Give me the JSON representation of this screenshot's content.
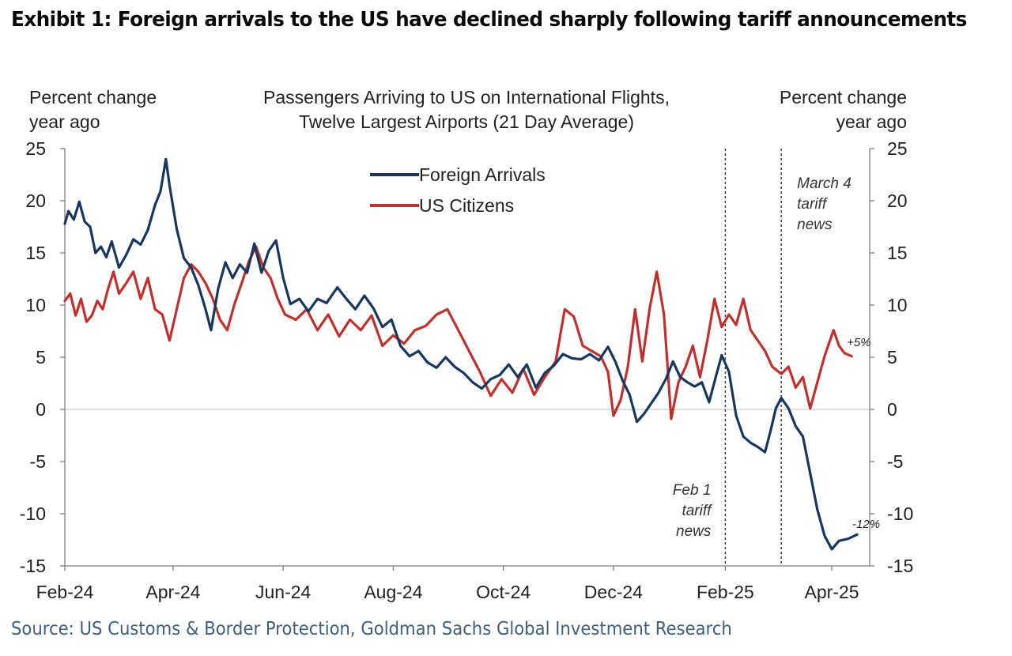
{
  "header": {
    "exhibit_title": "Exhibit 1: Foreign arrivals to the US have declined sharply following tariff announcements",
    "left_unit": [
      "Percent change",
      "year ago"
    ],
    "right_unit": [
      "Percent change",
      "year ago"
    ],
    "chart_title": [
      "Passengers Arriving to US on International Flights,",
      "Twelve Largest Airports (21 Day Average)"
    ]
  },
  "footer": {
    "source": "Source: US Customs & Border Protection, Goldman Sachs Global Investment Research"
  },
  "colors": {
    "foreign": "#17375e",
    "us": "#c0312e",
    "axis": "#7f7f7f",
    "zero_line": "#bfbfbf",
    "event_line": "#333333"
  },
  "chart_data": {
    "type": "line",
    "title": "Passengers Arriving to US on International Flights, Twelve Largest Airports (21 Day Average)",
    "ylabel_left": "Percent change year ago",
    "ylabel_right": "Percent change year ago",
    "xlim": [
      "2024-02-01",
      "2025-04-22"
    ],
    "ylim": [
      -15,
      25
    ],
    "y_ticks": [
      25,
      20,
      15,
      10,
      5,
      0,
      -5,
      -10,
      -15
    ],
    "x_ticks": [
      {
        "date": "2024-02-01",
        "label": "Feb-24"
      },
      {
        "date": "2024-04-01",
        "label": "Apr-24"
      },
      {
        "date": "2024-06-01",
        "label": "Jun-24"
      },
      {
        "date": "2024-08-01",
        "label": "Aug-24"
      },
      {
        "date": "2024-10-01",
        "label": "Oct-24"
      },
      {
        "date": "2024-12-01",
        "label": "Dec-24"
      },
      {
        "date": "2025-02-01",
        "label": "Feb-25"
      },
      {
        "date": "2025-04-01",
        "label": "Apr-25"
      }
    ],
    "grid": false,
    "legend_position": "top-center",
    "events": [
      {
        "date": "2025-02-01",
        "label": [
          "Feb 1",
          "tariff",
          "news"
        ]
      },
      {
        "date": "2025-03-04",
        "label": [
          "March 4",
          "tariff",
          "news"
        ]
      }
    ],
    "end_labels": [
      {
        "series": "US Citizens",
        "text": "+5%"
      },
      {
        "series": "Foreign Arrivals",
        "text": "-12%"
      }
    ],
    "series": [
      {
        "name": "Foreign Arrivals",
        "points": [
          [
            "2024-02-01",
            17.8
          ],
          [
            "2024-02-03",
            19.0
          ],
          [
            "2024-02-06",
            18.2
          ],
          [
            "2024-02-09",
            19.9
          ],
          [
            "2024-02-12",
            18.0
          ],
          [
            "2024-02-15",
            17.5
          ],
          [
            "2024-02-18",
            15.0
          ],
          [
            "2024-02-21",
            15.6
          ],
          [
            "2024-02-24",
            14.6
          ],
          [
            "2024-02-27",
            16.1
          ],
          [
            "2024-03-02",
            13.6
          ],
          [
            "2024-03-06",
            14.8
          ],
          [
            "2024-03-10",
            16.3
          ],
          [
            "2024-03-14",
            15.8
          ],
          [
            "2024-03-18",
            17.2
          ],
          [
            "2024-03-22",
            19.6
          ],
          [
            "2024-03-25",
            20.9
          ],
          [
            "2024-03-28",
            24.0
          ],
          [
            "2024-03-30",
            21.5
          ],
          [
            "2024-04-03",
            17.3
          ],
          [
            "2024-04-07",
            14.5
          ],
          [
            "2024-04-11",
            13.6
          ],
          [
            "2024-04-15",
            11.9
          ],
          [
            "2024-04-19",
            9.6
          ],
          [
            "2024-04-22",
            7.6
          ],
          [
            "2024-04-26",
            11.6
          ],
          [
            "2024-04-30",
            14.1
          ],
          [
            "2024-05-04",
            12.6
          ],
          [
            "2024-05-08",
            13.9
          ],
          [
            "2024-05-12",
            13.1
          ],
          [
            "2024-05-16",
            15.9
          ],
          [
            "2024-05-20",
            13.1
          ],
          [
            "2024-05-24",
            15.2
          ],
          [
            "2024-05-28",
            16.2
          ],
          [
            "2024-06-01",
            12.6
          ],
          [
            "2024-06-05",
            10.1
          ],
          [
            "2024-06-10",
            10.6
          ],
          [
            "2024-06-15",
            9.4
          ],
          [
            "2024-06-20",
            10.6
          ],
          [
            "2024-06-25",
            10.2
          ],
          [
            "2024-07-01",
            11.7
          ],
          [
            "2024-07-06",
            10.6
          ],
          [
            "2024-07-11",
            9.6
          ],
          [
            "2024-07-16",
            10.9
          ],
          [
            "2024-07-21",
            9.7
          ],
          [
            "2024-07-26",
            7.9
          ],
          [
            "2024-07-31",
            8.6
          ],
          [
            "2024-08-05",
            6.1
          ],
          [
            "2024-08-10",
            5.1
          ],
          [
            "2024-08-15",
            5.6
          ],
          [
            "2024-08-20",
            4.5
          ],
          [
            "2024-08-25",
            4.0
          ],
          [
            "2024-08-30",
            5.0
          ],
          [
            "2024-09-04",
            4.1
          ],
          [
            "2024-09-09",
            3.5
          ],
          [
            "2024-09-14",
            2.6
          ],
          [
            "2024-09-19",
            2.0
          ],
          [
            "2024-09-24",
            2.9
          ],
          [
            "2024-09-29",
            3.3
          ],
          [
            "2024-10-04",
            4.3
          ],
          [
            "2024-10-09",
            3.1
          ],
          [
            "2024-10-14",
            4.3
          ],
          [
            "2024-10-19",
            2.1
          ],
          [
            "2024-10-24",
            3.5
          ],
          [
            "2024-10-29",
            4.2
          ],
          [
            "2024-11-03",
            5.3
          ],
          [
            "2024-11-08",
            4.9
          ],
          [
            "2024-11-13",
            4.8
          ],
          [
            "2024-11-18",
            5.3
          ],
          [
            "2024-11-23",
            4.7
          ],
          [
            "2024-11-28",
            6.0
          ],
          [
            "2024-12-02",
            4.6
          ],
          [
            "2024-12-06",
            2.8
          ],
          [
            "2024-12-10",
            1.4
          ],
          [
            "2024-12-14",
            -1.2
          ],
          [
            "2024-12-18",
            -0.4
          ],
          [
            "2024-12-22",
            0.6
          ],
          [
            "2024-12-26",
            1.6
          ],
          [
            "2024-12-30",
            2.9
          ],
          [
            "2025-01-03",
            4.6
          ],
          [
            "2025-01-07",
            3.1
          ],
          [
            "2025-01-11",
            2.6
          ],
          [
            "2025-01-15",
            2.2
          ],
          [
            "2025-01-19",
            2.6
          ],
          [
            "2025-01-23",
            0.7
          ],
          [
            "2025-01-27",
            3.3
          ],
          [
            "2025-01-30",
            5.2
          ],
          [
            "2025-02-03",
            3.6
          ],
          [
            "2025-02-07",
            -0.6
          ],
          [
            "2025-02-11",
            -2.6
          ],
          [
            "2025-02-15",
            -3.2
          ],
          [
            "2025-02-19",
            -3.6
          ],
          [
            "2025-02-23",
            -4.1
          ],
          [
            "2025-02-26",
            -2.1
          ],
          [
            "2025-03-01",
            0.1
          ],
          [
            "2025-03-04",
            1.1
          ],
          [
            "2025-03-08",
            0.1
          ],
          [
            "2025-03-12",
            -1.6
          ],
          [
            "2025-03-16",
            -2.6
          ],
          [
            "2025-03-20",
            -6.1
          ],
          [
            "2025-03-24",
            -9.6
          ],
          [
            "2025-03-28",
            -12.1
          ],
          [
            "2025-04-01",
            -13.4
          ],
          [
            "2025-04-05",
            -12.6
          ],
          [
            "2025-04-10",
            -12.4
          ],
          [
            "2025-04-15",
            -12.0
          ]
        ]
      },
      {
        "name": "US Citizens",
        "points": [
          [
            "2024-02-01",
            10.4
          ],
          [
            "2024-02-04",
            11.1
          ],
          [
            "2024-02-07",
            9.0
          ],
          [
            "2024-02-10",
            10.6
          ],
          [
            "2024-02-13",
            8.4
          ],
          [
            "2024-02-16",
            9.0
          ],
          [
            "2024-02-19",
            10.4
          ],
          [
            "2024-02-22",
            9.6
          ],
          [
            "2024-02-25",
            11.6
          ],
          [
            "2024-02-28",
            13.2
          ],
          [
            "2024-03-02",
            11.1
          ],
          [
            "2024-03-06",
            12.1
          ],
          [
            "2024-03-10",
            13.2
          ],
          [
            "2024-03-14",
            10.6
          ],
          [
            "2024-03-18",
            12.6
          ],
          [
            "2024-03-22",
            9.6
          ],
          [
            "2024-03-26",
            9.1
          ],
          [
            "2024-03-30",
            6.6
          ],
          [
            "2024-04-03",
            9.6
          ],
          [
            "2024-04-07",
            12.6
          ],
          [
            "2024-04-11",
            13.9
          ],
          [
            "2024-04-15",
            13.2
          ],
          [
            "2024-04-19",
            12.1
          ],
          [
            "2024-04-23",
            10.6
          ],
          [
            "2024-04-27",
            8.6
          ],
          [
            "2024-05-01",
            7.6
          ],
          [
            "2024-05-05",
            10.1
          ],
          [
            "2024-05-09",
            12.1
          ],
          [
            "2024-05-13",
            14.2
          ],
          [
            "2024-05-17",
            15.6
          ],
          [
            "2024-05-21",
            13.6
          ],
          [
            "2024-05-25",
            12.6
          ],
          [
            "2024-05-29",
            10.6
          ],
          [
            "2024-06-02",
            9.1
          ],
          [
            "2024-06-08",
            8.6
          ],
          [
            "2024-06-14",
            9.6
          ],
          [
            "2024-06-20",
            7.6
          ],
          [
            "2024-06-26",
            9.1
          ],
          [
            "2024-07-02",
            7.0
          ],
          [
            "2024-07-08",
            8.6
          ],
          [
            "2024-07-14",
            7.6
          ],
          [
            "2024-07-20",
            9.0
          ],
          [
            "2024-07-26",
            6.1
          ],
          [
            "2024-08-01",
            7.1
          ],
          [
            "2024-08-07",
            6.3
          ],
          [
            "2024-08-13",
            7.6
          ],
          [
            "2024-08-19",
            8.0
          ],
          [
            "2024-08-25",
            9.1
          ],
          [
            "2024-08-31",
            9.6
          ],
          [
            "2024-09-06",
            7.6
          ],
          [
            "2024-09-12",
            5.6
          ],
          [
            "2024-09-18",
            3.6
          ],
          [
            "2024-09-24",
            1.3
          ],
          [
            "2024-09-30",
            2.9
          ],
          [
            "2024-10-06",
            1.6
          ],
          [
            "2024-10-12",
            3.9
          ],
          [
            "2024-10-18",
            1.4
          ],
          [
            "2024-10-24",
            3.1
          ],
          [
            "2024-10-30",
            4.6
          ],
          [
            "2024-11-04",
            9.6
          ],
          [
            "2024-11-09",
            8.9
          ],
          [
            "2024-11-14",
            6.1
          ],
          [
            "2024-11-19",
            5.6
          ],
          [
            "2024-11-24",
            5.1
          ],
          [
            "2024-11-28",
            3.6
          ],
          [
            "2024-12-01",
            -0.6
          ],
          [
            "2024-12-05",
            0.9
          ],
          [
            "2024-12-09",
            4.1
          ],
          [
            "2024-12-13",
            9.6
          ],
          [
            "2024-12-17",
            4.6
          ],
          [
            "2024-12-21",
            9.6
          ],
          [
            "2024-12-25",
            13.2
          ],
          [
            "2024-12-29",
            9.1
          ],
          [
            "2025-01-02",
            -0.9
          ],
          [
            "2025-01-06",
            2.6
          ],
          [
            "2025-01-10",
            4.1
          ],
          [
            "2025-01-14",
            6.1
          ],
          [
            "2025-01-18",
            3.1
          ],
          [
            "2025-01-22",
            6.6
          ],
          [
            "2025-01-26",
            10.6
          ],
          [
            "2025-01-30",
            7.9
          ],
          [
            "2025-02-03",
            9.1
          ],
          [
            "2025-02-07",
            8.1
          ],
          [
            "2025-02-11",
            10.6
          ],
          [
            "2025-02-15",
            7.6
          ],
          [
            "2025-02-19",
            6.6
          ],
          [
            "2025-02-23",
            5.6
          ],
          [
            "2025-02-27",
            4.1
          ],
          [
            "2025-03-04",
            3.4
          ],
          [
            "2025-03-08",
            4.1
          ],
          [
            "2025-03-12",
            2.1
          ],
          [
            "2025-03-16",
            3.1
          ],
          [
            "2025-03-20",
            0.1
          ],
          [
            "2025-03-24",
            2.6
          ],
          [
            "2025-03-28",
            5.1
          ],
          [
            "2025-04-02",
            7.6
          ],
          [
            "2025-04-05",
            6.1
          ],
          [
            "2025-04-08",
            5.4
          ],
          [
            "2025-04-12",
            5.1
          ]
        ]
      }
    ]
  }
}
